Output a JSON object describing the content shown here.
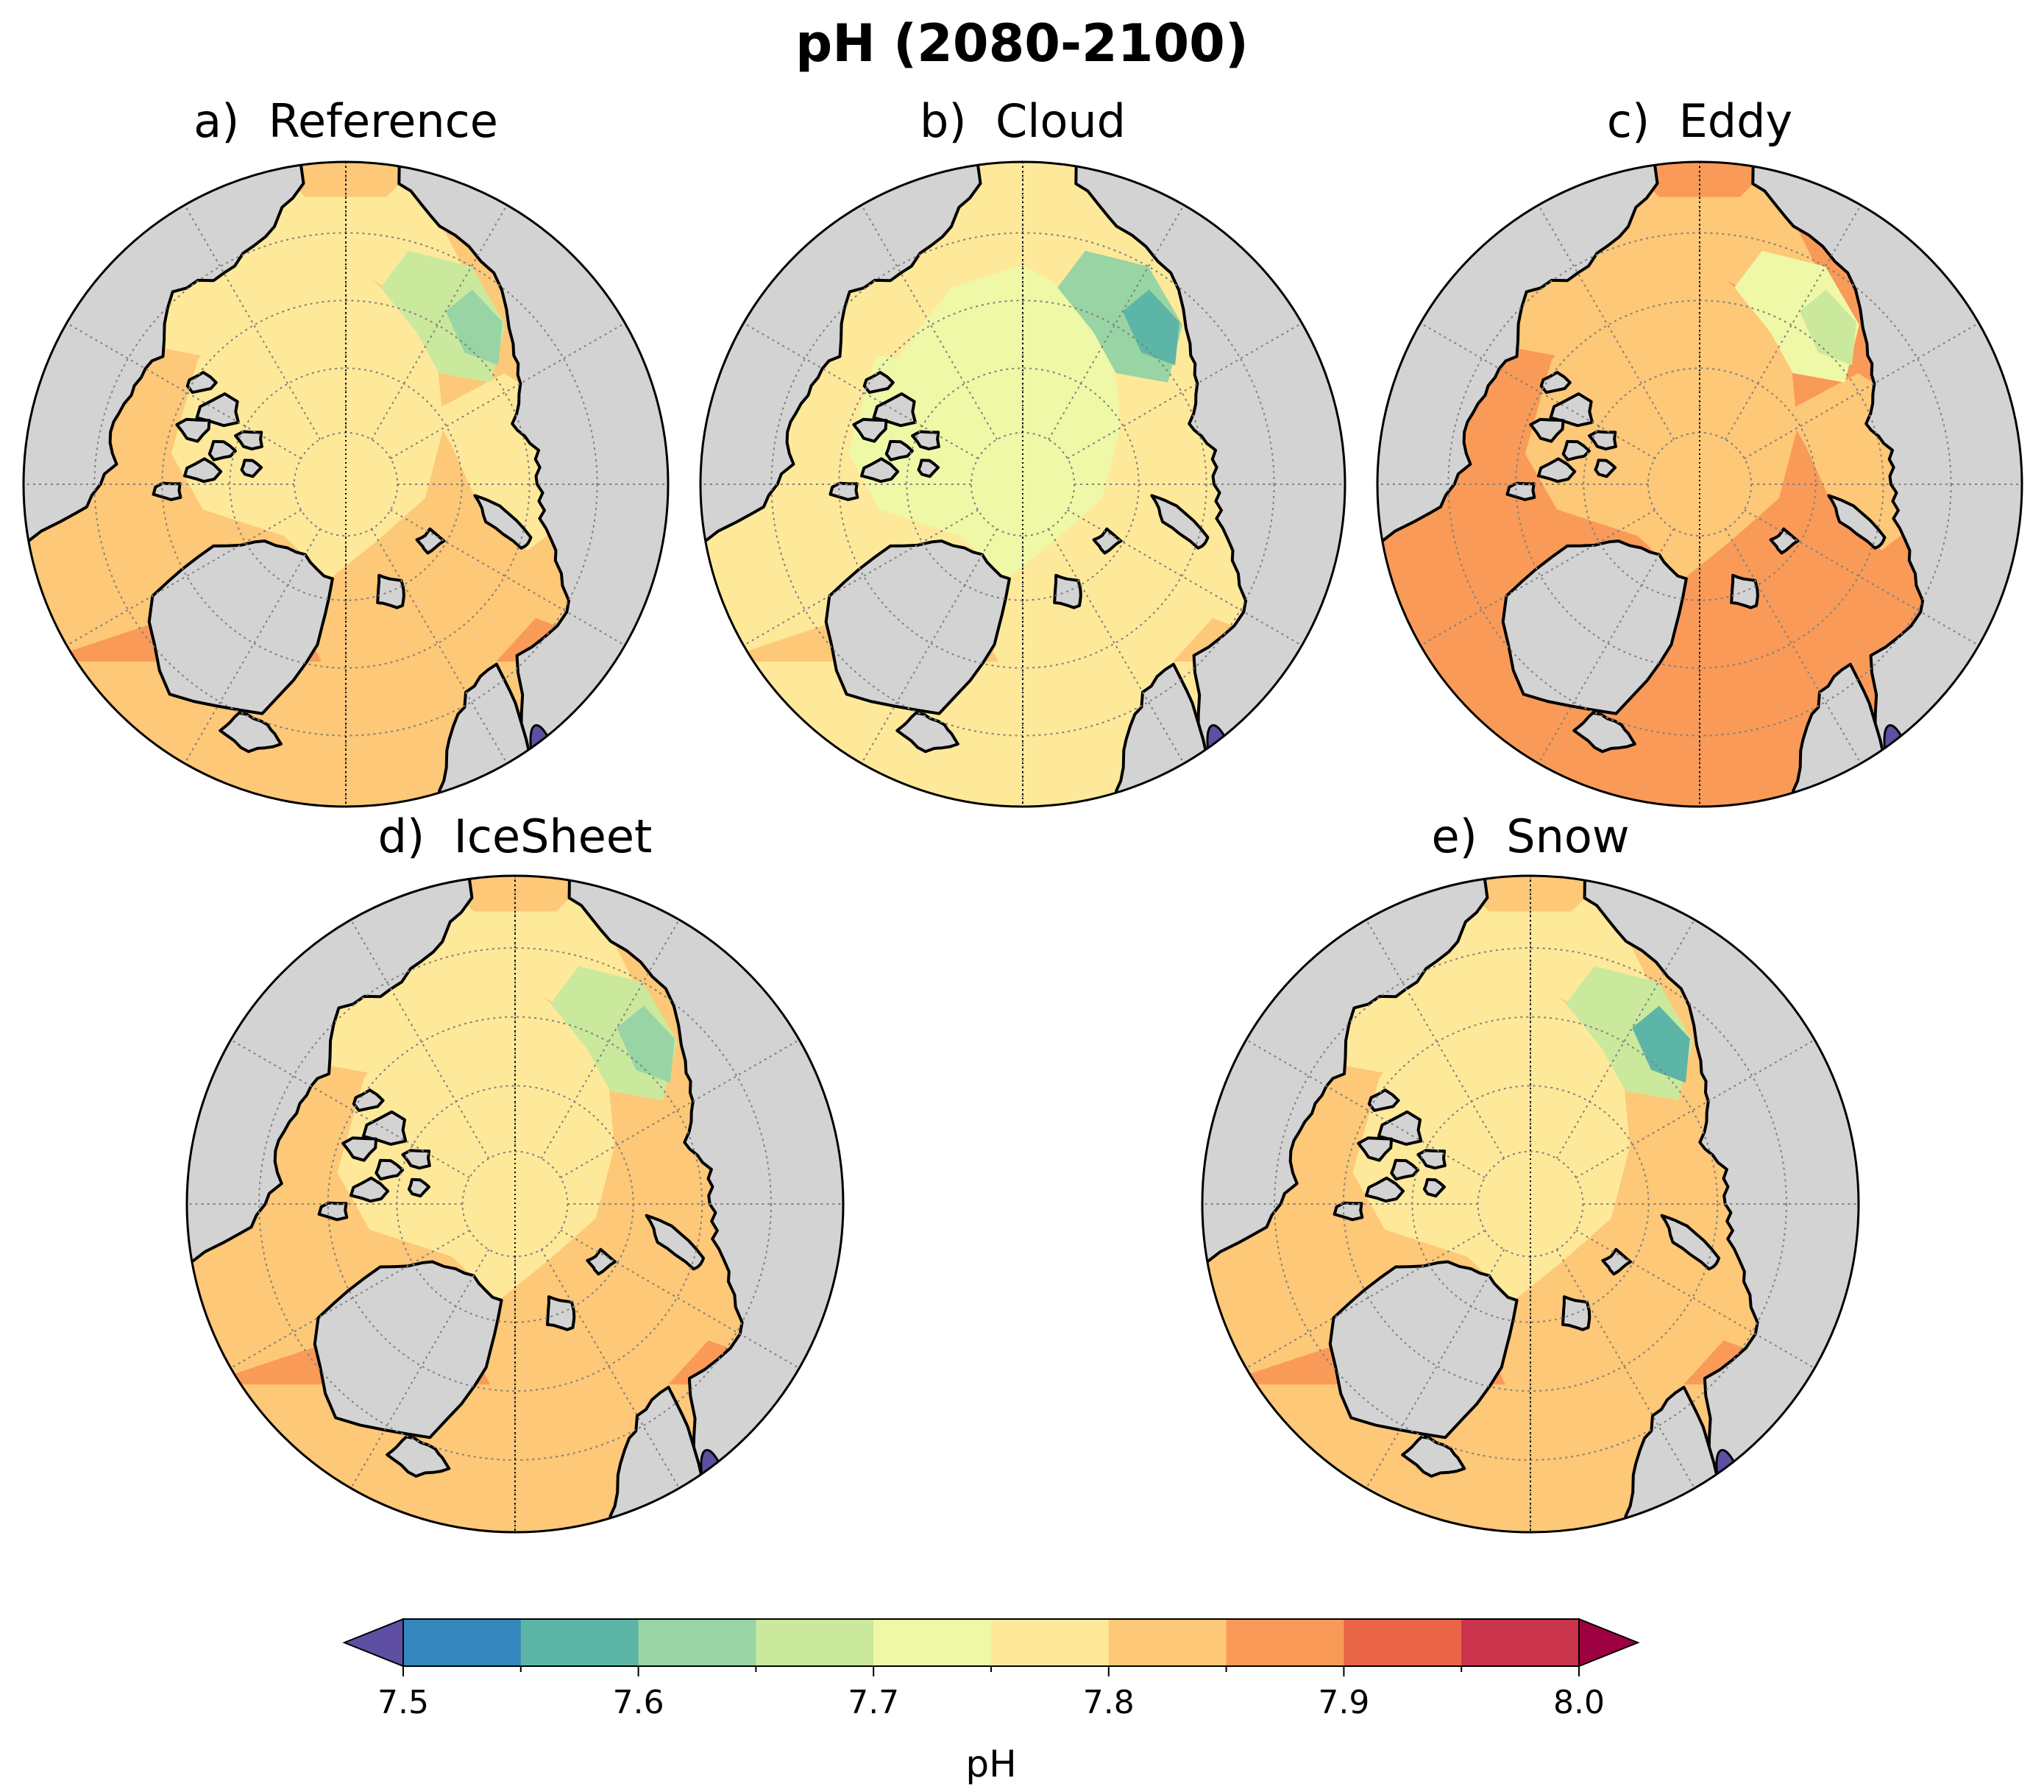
{
  "figure": {
    "title": "pH (2080-2100)"
  },
  "panels": [
    {
      "label": "a)",
      "name": "Reference"
    },
    {
      "label": "b)",
      "name": "Cloud"
    },
    {
      "label": "c)",
      "name": "Eddy"
    },
    {
      "label": "d)",
      "name": "IceSheet"
    },
    {
      "label": "e)",
      "name": "Snow"
    }
  ],
  "colorbar": {
    "label": "pH",
    "min": 7.5,
    "max": 8.0,
    "step": 0.05,
    "extend": "both",
    "ticks": [
      "7.5",
      "7.6",
      "7.7",
      "7.8",
      "7.9",
      "8.0"
    ],
    "colors": [
      "#3487bd",
      "#5db5a7",
      "#99d4a4",
      "#cbe99d",
      "#eff8a6",
      "#fee99a",
      "#fdc877",
      "#f99a58",
      "#ea6447",
      "#ca334c"
    ],
    "under_color": "#5e4fa2",
    "over_color": "#9e0142"
  },
  "map_colors": {
    "land": "#d3d3d3",
    "coast": "#000000",
    "grid": "#808080"
  }
}
